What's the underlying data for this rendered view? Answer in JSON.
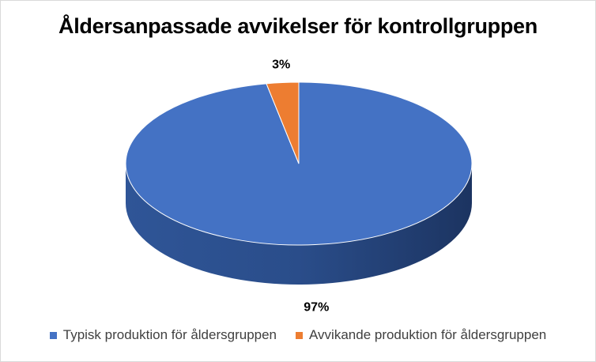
{
  "chart_data": {
    "type": "pie",
    "title": "Åldersanpassade avvikelser för kontrollgruppen",
    "slices": [
      {
        "label": "Typisk produktion för åldersgruppen",
        "value": 97,
        "data_label": "97%",
        "color": "#4472C4",
        "side_color": "#2F5597"
      },
      {
        "label": "Avvikande produktion för åldersgruppen",
        "value": 3,
        "data_label": "3%",
        "color": "#ED7D31",
        "side_color": "#C55A11"
      }
    ],
    "legend_position": "bottom",
    "style": "3d"
  }
}
